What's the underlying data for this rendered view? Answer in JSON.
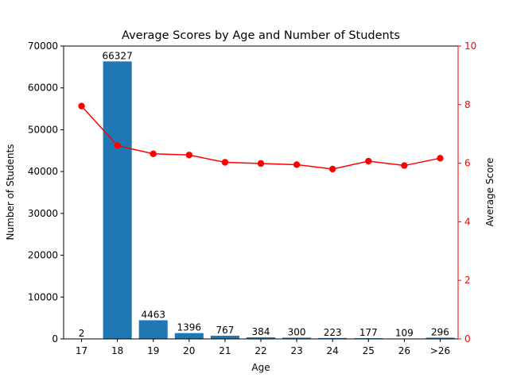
{
  "chart_data": {
    "type": "bar",
    "title": "Average Scores by Age and Number of Students",
    "xlabel": "Age",
    "ylabel": "Number of Students",
    "y2label": "Average Score",
    "categories": [
      "17",
      "18",
      "19",
      "20",
      "21",
      "22",
      "23",
      "24",
      "25",
      "26",
      ">26"
    ],
    "ylim": [
      0,
      70000
    ],
    "y2lim": [
      0,
      10
    ],
    "yticks": [
      "0",
      "10000",
      "20000",
      "30000",
      "40000",
      "50000",
      "60000",
      "70000"
    ],
    "y2ticks": [
      "0",
      "2",
      "4",
      "6",
      "8",
      "10"
    ],
    "grid": false,
    "series": [
      {
        "name": "Number of Students",
        "type": "bar",
        "axis": "left",
        "color": "#1f77b4",
        "values": [
          2,
          66327,
          4463,
          1396,
          767,
          384,
          300,
          223,
          177,
          109,
          296
        ]
      },
      {
        "name": "Average Score",
        "type": "line",
        "axis": "right",
        "color": "#ff0000",
        "values": [
          7.95,
          6.6,
          6.32,
          6.28,
          6.03,
          5.99,
          5.95,
          5.8,
          6.07,
          5.92,
          6.17
        ]
      }
    ]
  }
}
